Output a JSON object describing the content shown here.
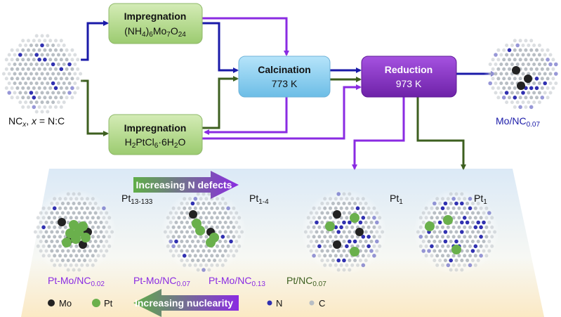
{
  "colors": {
    "blue": "#1a1aa8",
    "green": "#3d5f1f",
    "purple": "#8a2be2",
    "box_green": "#b5d98f",
    "box_blue": "#8fd0f0",
    "box_purple": "#8a32c8",
    "mo": "#222222",
    "pt": "#6ab04c",
    "n": "#3030b0",
    "c": "#b8bec4"
  },
  "boxes": {
    "impregnation_mo": {
      "title": "Impregnation",
      "formula": [
        {
          "t": "(NH"
        },
        {
          "s": "4"
        },
        {
          "t": ")"
        },
        {
          "s": "6"
        },
        {
          "t": "Mo"
        },
        {
          "s": "7"
        },
        {
          "t": "O"
        },
        {
          "s": "24"
        }
      ]
    },
    "impregnation_pt": {
      "title": "Impregnation",
      "formula": [
        {
          "t": "H"
        },
        {
          "s": "2"
        },
        {
          "t": "PtCl"
        },
        {
          "s": "6"
        },
        {
          "t": "·6H"
        },
        {
          "s": "2"
        },
        {
          "t": "O"
        }
      ]
    },
    "calcination": {
      "title": "Calcination",
      "temp": "773 K"
    },
    "reduction": {
      "title": "Reduction",
      "temp": "973 K"
    }
  },
  "support_label": {
    "a": "NC",
    "sub": "x",
    "b": ", ",
    "c": "x",
    "d": " = N:C"
  },
  "mo_product": {
    "base": "Mo/NC",
    "sub": "0.07"
  },
  "arrows": {
    "n_defects": "Increasing N defects",
    "nuclearity": "Increasing nuclearity"
  },
  "samples": [
    {
      "name": "Pt-Mo/NC",
      "sub": "0.02",
      "pt_base": "Pt",
      "pt_sub": "13-133",
      "color": "#8a2be2"
    },
    {
      "name": "Pt-Mo/NC",
      "sub": "0.07",
      "pt_base": "Pt",
      "pt_sub": "1-4",
      "color": "#8a2be2"
    },
    {
      "name": "Pt-Mo/NC",
      "sub": "0.13",
      "pt_base": "Pt",
      "pt_sub": "1",
      "color": "#8a2be2"
    },
    {
      "name": "Pt/NC",
      "sub": "0.07",
      "pt_base": "Pt",
      "pt_sub": "1",
      "color": "#3d5f1f"
    }
  ],
  "legend": {
    "mo": "Mo",
    "pt": "Pt",
    "n": "N",
    "c": "C"
  }
}
